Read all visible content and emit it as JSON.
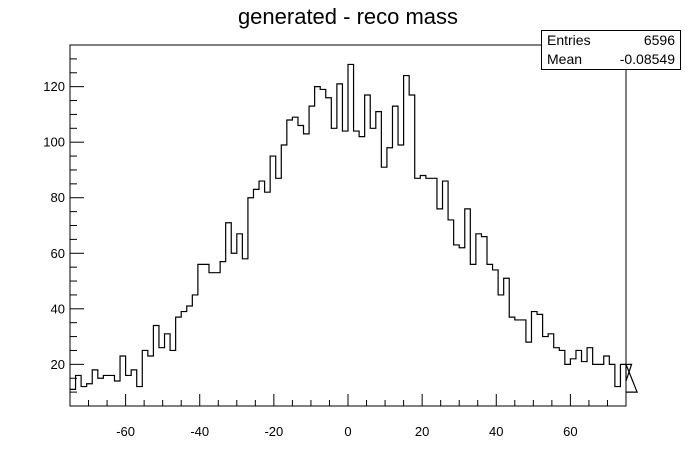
{
  "chart_data": {
    "type": "histogram",
    "title": "generated - reco mass",
    "xlabel": "",
    "ylabel": "",
    "xlim": [
      -75,
      75
    ],
    "ylim": [
      5,
      135
    ],
    "x_ticks": [
      -60,
      -40,
      -20,
      0,
      20,
      40,
      60
    ],
    "y_ticks": [
      20,
      40,
      60,
      80,
      100,
      120
    ],
    "bin_edges_start": -75,
    "bin_width": 1.5,
    "values": [
      11,
      16,
      12,
      13,
      18,
      15,
      16,
      16,
      14,
      23,
      16,
      18,
      12,
      25,
      23,
      34,
      26,
      31,
      25,
      37,
      39,
      41,
      45,
      56,
      56,
      53,
      53,
      57,
      71,
      60,
      67,
      58,
      80,
      83,
      86,
      82,
      95,
      87,
      99,
      108,
      109,
      106,
      103,
      113,
      120,
      119,
      116,
      105,
      121,
      104,
      128,
      104,
      102,
      117,
      105,
      111,
      91,
      98,
      113,
      99,
      124,
      117,
      87,
      88,
      87,
      87,
      76,
      86,
      72,
      63,
      62,
      76,
      56,
      67,
      66,
      56,
      54,
      45,
      51,
      37,
      36,
      36,
      28,
      39,
      38,
      30,
      31,
      26,
      25,
      20,
      22,
      25,
      21,
      26,
      20,
      20,
      23,
      20,
      12,
      20,
      14,
      20,
      10
    ],
    "stats": {
      "entries_label": "Entries",
      "entries_value": "6596",
      "mean_label": "Mean",
      "mean_value": "-0.08549"
    }
  }
}
